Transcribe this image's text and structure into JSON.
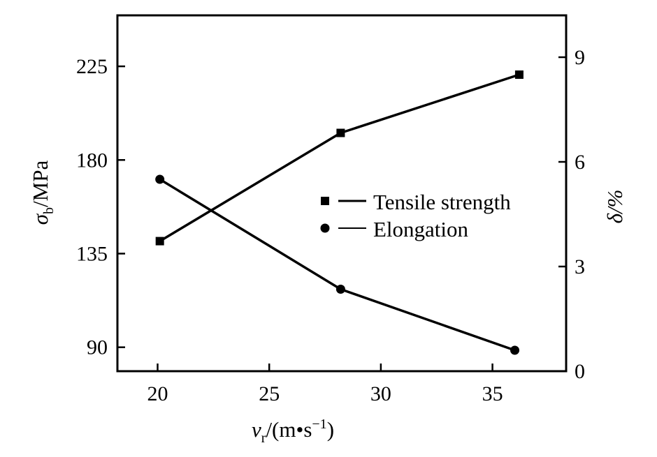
{
  "chart_data": {
    "type": "line",
    "x_axis": {
      "label_symbol": "v",
      "label_subscript": "r",
      "label_unit": "/(m•s",
      "label_unit_sup": "−1",
      "label_unit_close": ")",
      "range": [
        18.2,
        38.3
      ],
      "ticks": [
        20,
        25,
        30,
        35
      ]
    },
    "y_left": {
      "label_symbol": "σ",
      "label_subscript": "b",
      "label_unit": "/MPa",
      "range": [
        78.5,
        249.5
      ],
      "ticks": [
        90,
        135,
        180,
        225
      ]
    },
    "y_right": {
      "label": "δ/%",
      "range": [
        0,
        10.2
      ],
      "ticks": [
        0,
        3,
        6,
        9
      ]
    },
    "series": [
      {
        "name": "Tensile strength",
        "axis": "left",
        "marker": "square",
        "x": [
          20.1,
          28.2,
          36.2
        ],
        "y": [
          141,
          193,
          221
        ]
      },
      {
        "name": "Elongation",
        "axis": "right",
        "marker": "circle",
        "x": [
          20.1,
          28.2,
          36.0
        ],
        "y": [
          5.5,
          2.35,
          0.6
        ]
      }
    ],
    "legend": {
      "placement": "center-right"
    },
    "grid": false
  }
}
